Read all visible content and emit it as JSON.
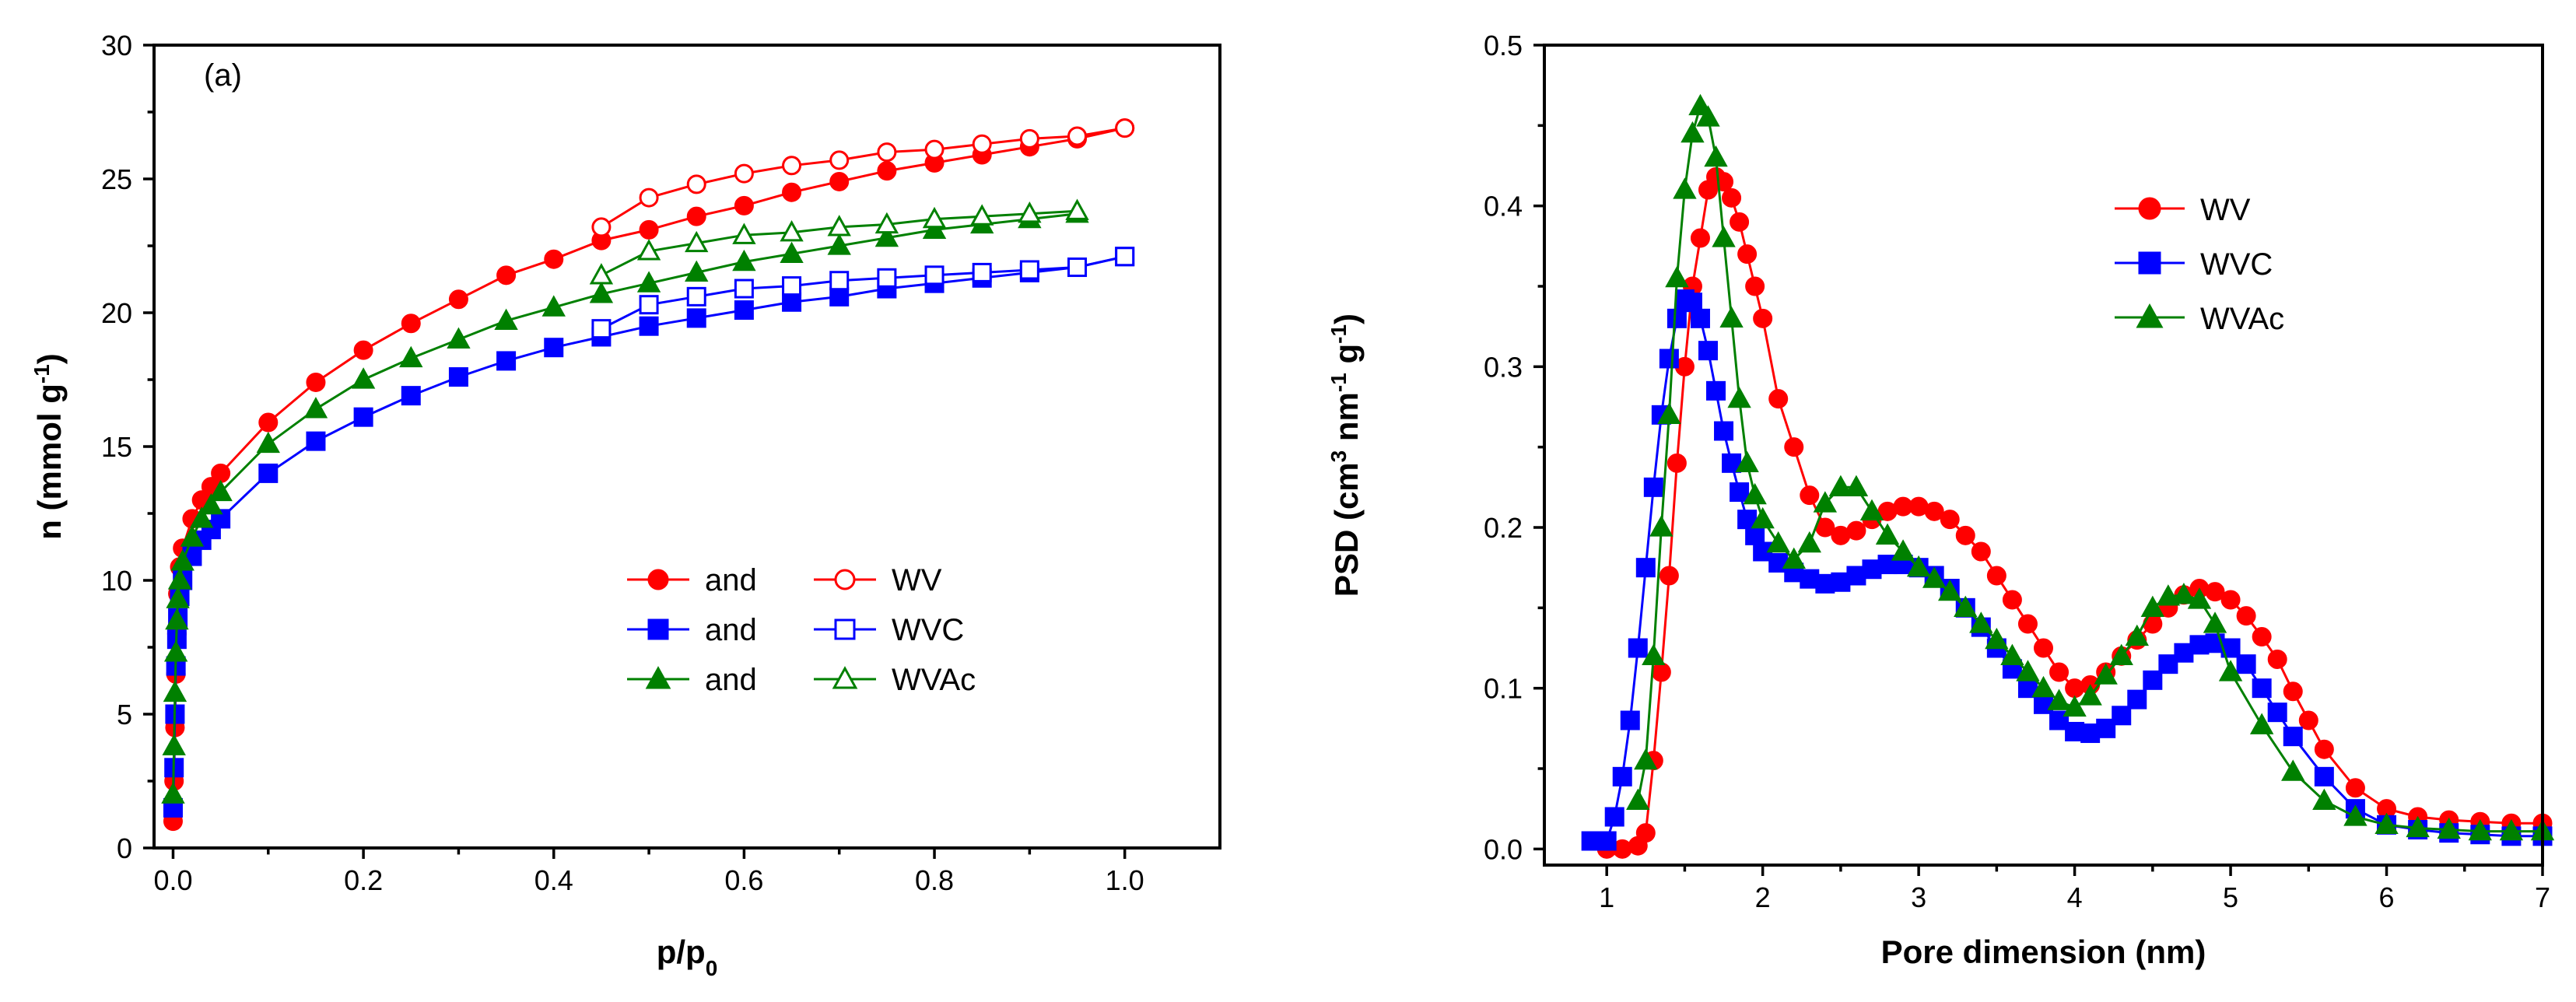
{
  "chart_data": [
    {
      "type": "line",
      "panel_label": "(a)",
      "xlabel": "p/p0",
      "xlabel_main": "p/p",
      "xlabel_sub": "0",
      "ylabel": "n (mmol g-1)",
      "ylabel_main": "n (mmol g",
      "ylabel_sup": "-1",
      "ylabel_close": ")",
      "xlim": [
        -0.02,
        1.1
      ],
      "ylim": [
        0,
        30
      ],
      "xticks": [
        "0.0",
        "0.2",
        "0.4",
        "0.6",
        "0.8",
        "1.0"
      ],
      "xtick_values": [
        0.0,
        0.2,
        0.4,
        0.6,
        0.8,
        1.0
      ],
      "yticks": [
        "0",
        "5",
        "10",
        "15",
        "20",
        "25",
        "30"
      ],
      "ytick_values": [
        0,
        5,
        10,
        15,
        20,
        25,
        30
      ],
      "legend_position": "center-right",
      "series": [
        {
          "name": "WV",
          "color": "#ff0000",
          "marker": "circle",
          "adsorption_label": "and",
          "adsorption": {
            "x": [
              0.0,
              0.001,
              0.002,
              0.003,
              0.004,
              0.005,
              0.007,
              0.01,
              0.02,
              0.03,
              0.04,
              0.05,
              0.1,
              0.15,
              0.2,
              0.25,
              0.3,
              0.35,
              0.4,
              0.45,
              0.5,
              0.55,
              0.6,
              0.65,
              0.7,
              0.75,
              0.8,
              0.85,
              0.9,
              0.95,
              1.0
            ],
            "y": [
              1.0,
              2.5,
              4.5,
              6.5,
              8.0,
              9.5,
              10.5,
              11.2,
              12.3,
              13.0,
              13.5,
              14.0,
              15.9,
              17.4,
              18.6,
              19.6,
              20.5,
              21.4,
              22.0,
              22.7,
              23.1,
              23.6,
              24.0,
              24.5,
              24.9,
              25.3,
              25.6,
              25.9,
              26.2,
              26.5,
              26.9
            ]
          },
          "desorption": {
            "x": [
              0.45,
              0.5,
              0.55,
              0.6,
              0.65,
              0.7,
              0.75,
              0.8,
              0.85,
              0.9,
              0.95,
              1.0
            ],
            "y": [
              23.2,
              24.3,
              24.8,
              25.2,
              25.5,
              25.7,
              26.0,
              26.1,
              26.3,
              26.5,
              26.6,
              26.9
            ]
          }
        },
        {
          "name": "WVC",
          "color": "#0000ff",
          "marker": "square",
          "adsorption_label": "and",
          "adsorption": {
            "x": [
              0.0,
              0.001,
              0.002,
              0.003,
              0.004,
              0.005,
              0.007,
              0.01,
              0.02,
              0.03,
              0.04,
              0.05,
              0.1,
              0.15,
              0.2,
              0.25,
              0.3,
              0.35,
              0.4,
              0.45,
              0.5,
              0.55,
              0.6,
              0.65,
              0.7,
              0.75,
              0.8,
              0.85,
              0.9,
              0.95,
              1.0
            ],
            "y": [
              1.5,
              3.0,
              5.0,
              6.8,
              7.8,
              8.6,
              9.4,
              10.0,
              10.9,
              11.5,
              11.9,
              12.3,
              14.0,
              15.2,
              16.1,
              16.9,
              17.6,
              18.2,
              18.7,
              19.1,
              19.5,
              19.8,
              20.1,
              20.4,
              20.6,
              20.9,
              21.1,
              21.3,
              21.5,
              21.7,
              22.1
            ]
          },
          "desorption": {
            "x": [
              0.45,
              0.5,
              0.55,
              0.6,
              0.65,
              0.7,
              0.75,
              0.8,
              0.85,
              0.9,
              0.95,
              1.0
            ],
            "y": [
              19.4,
              20.3,
              20.6,
              20.9,
              21.0,
              21.2,
              21.3,
              21.4,
              21.5,
              21.6,
              21.7,
              22.1
            ]
          }
        },
        {
          "name": "WVAc",
          "color": "#008000",
          "marker": "triangle",
          "adsorption_label": "and",
          "adsorption": {
            "x": [
              0.0,
              0.001,
              0.002,
              0.003,
              0.004,
              0.005,
              0.007,
              0.01,
              0.02,
              0.03,
              0.04,
              0.05,
              0.1,
              0.15,
              0.2,
              0.25,
              0.3,
              0.35,
              0.4,
              0.45,
              0.5,
              0.55,
              0.6,
              0.65,
              0.7,
              0.75,
              0.8,
              0.85,
              0.9,
              0.95
            ],
            "y": [
              2.0,
              3.8,
              5.8,
              7.3,
              8.5,
              9.3,
              10.0,
              10.7,
              11.6,
              12.3,
              12.8,
              13.3,
              15.1,
              16.4,
              17.5,
              18.3,
              19.0,
              19.7,
              20.2,
              20.7,
              21.1,
              21.5,
              21.9,
              22.2,
              22.5,
              22.8,
              23.1,
              23.3,
              23.5,
              23.7
            ]
          },
          "desorption": {
            "x": [
              0.45,
              0.5,
              0.55,
              0.6,
              0.65,
              0.7,
              0.75,
              0.8,
              0.85,
              0.9,
              0.95
            ],
            "y": [
              21.4,
              22.3,
              22.6,
              22.9,
              23.0,
              23.2,
              23.3,
              23.5,
              23.6,
              23.7,
              23.8
            ]
          }
        }
      ]
    },
    {
      "type": "line",
      "xlabel": "Pore dimension (nm)",
      "ylabel": "PSD (cm3 nm-1 g-1)",
      "ylabel_parts": [
        "PSD (cm",
        "3",
        " nm",
        "-1",
        " g",
        "-1",
        ")"
      ],
      "xlim": [
        0.6,
        7.0
      ],
      "ylim": [
        -0.01,
        0.5
      ],
      "xticks": [
        "1",
        "2",
        "3",
        "4",
        "5",
        "6",
        "7"
      ],
      "xtick_values": [
        1,
        2,
        3,
        4,
        5,
        6,
        7
      ],
      "yticks": [
        "0.0",
        "0.1",
        "0.2",
        "0.3",
        "0.4",
        "0.5"
      ],
      "ytick_values": [
        0.0,
        0.1,
        0.2,
        0.3,
        0.4,
        0.5
      ],
      "legend_position": "upper-right",
      "series": [
        {
          "name": "WV",
          "color": "#ff0000",
          "marker": "circle",
          "x": [
            1.0,
            1.1,
            1.2,
            1.25,
            1.3,
            1.35,
            1.4,
            1.45,
            1.5,
            1.55,
            1.6,
            1.65,
            1.7,
            1.75,
            1.8,
            1.85,
            1.9,
            1.95,
            2.0,
            2.1,
            2.2,
            2.3,
            2.4,
            2.5,
            2.6,
            2.7,
            2.8,
            2.9,
            3.0,
            3.1,
            3.2,
            3.3,
            3.4,
            3.5,
            3.6,
            3.7,
            3.8,
            3.9,
            4.0,
            4.1,
            4.2,
            4.3,
            4.4,
            4.5,
            4.6,
            4.7,
            4.8,
            4.9,
            5.0,
            5.1,
            5.2,
            5.3,
            5.4,
            5.5,
            5.6,
            5.8,
            6.0,
            6.2,
            6.4,
            6.6,
            6.8,
            7.0
          ],
          "y": [
            0.0,
            0.0,
            0.002,
            0.01,
            0.055,
            0.11,
            0.17,
            0.24,
            0.3,
            0.35,
            0.38,
            0.41,
            0.418,
            0.415,
            0.405,
            0.39,
            0.37,
            0.35,
            0.33,
            0.28,
            0.25,
            0.22,
            0.2,
            0.195,
            0.198,
            0.205,
            0.21,
            0.213,
            0.213,
            0.21,
            0.205,
            0.195,
            0.185,
            0.17,
            0.155,
            0.14,
            0.125,
            0.11,
            0.1,
            0.102,
            0.11,
            0.12,
            0.13,
            0.14,
            0.15,
            0.158,
            0.162,
            0.16,
            0.155,
            0.145,
            0.132,
            0.118,
            0.098,
            0.08,
            0.062,
            0.038,
            0.025,
            0.02,
            0.018,
            0.017,
            0.016,
            0.016
          ]
        },
        {
          "name": "WVC",
          "color": "#0000ff",
          "marker": "square",
          "x": [
            0.9,
            1.0,
            1.05,
            1.1,
            1.15,
            1.2,
            1.25,
            1.3,
            1.35,
            1.4,
            1.45,
            1.5,
            1.55,
            1.6,
            1.65,
            1.7,
            1.75,
            1.8,
            1.85,
            1.9,
            1.95,
            2.0,
            2.1,
            2.2,
            2.3,
            2.4,
            2.5,
            2.6,
            2.7,
            2.8,
            2.9,
            3.0,
            3.1,
            3.2,
            3.3,
            3.4,
            3.5,
            3.6,
            3.7,
            3.8,
            3.9,
            4.0,
            4.1,
            4.2,
            4.3,
            4.4,
            4.5,
            4.6,
            4.7,
            4.8,
            4.9,
            5.0,
            5.1,
            5.2,
            5.3,
            5.4,
            5.6,
            5.8,
            6.0,
            6.2,
            6.4,
            6.6,
            6.8,
            7.0
          ],
          "y": [
            0.005,
            0.005,
            0.02,
            0.045,
            0.08,
            0.125,
            0.175,
            0.225,
            0.27,
            0.305,
            0.33,
            0.342,
            0.34,
            0.33,
            0.31,
            0.285,
            0.26,
            0.24,
            0.222,
            0.205,
            0.195,
            0.185,
            0.178,
            0.172,
            0.168,
            0.165,
            0.166,
            0.17,
            0.174,
            0.177,
            0.177,
            0.175,
            0.17,
            0.162,
            0.15,
            0.138,
            0.125,
            0.112,
            0.1,
            0.09,
            0.08,
            0.073,
            0.072,
            0.075,
            0.083,
            0.093,
            0.105,
            0.115,
            0.122,
            0.127,
            0.128,
            0.125,
            0.115,
            0.1,
            0.085,
            0.07,
            0.045,
            0.025,
            0.015,
            0.012,
            0.01,
            0.009,
            0.008,
            0.008
          ]
        },
        {
          "name": "WVAc",
          "color": "#008000",
          "marker": "triangle",
          "x": [
            1.2,
            1.25,
            1.3,
            1.35,
            1.4,
            1.45,
            1.5,
            1.55,
            1.6,
            1.65,
            1.7,
            1.75,
            1.8,
            1.85,
            1.9,
            1.95,
            2.0,
            2.1,
            2.2,
            2.3,
            2.4,
            2.5,
            2.6,
            2.7,
            2.8,
            2.9,
            3.0,
            3.1,
            3.2,
            3.3,
            3.4,
            3.5,
            3.6,
            3.7,
            3.8,
            3.9,
            4.0,
            4.1,
            4.2,
            4.3,
            4.4,
            4.5,
            4.6,
            4.7,
            4.8,
            4.9,
            5.0,
            5.2,
            5.4,
            5.6,
            5.8,
            6.0,
            6.2,
            6.4,
            6.6,
            6.8,
            7.0
          ],
          "y": [
            0.03,
            0.055,
            0.12,
            0.2,
            0.27,
            0.355,
            0.41,
            0.445,
            0.462,
            0.455,
            0.43,
            0.38,
            0.33,
            0.28,
            0.24,
            0.22,
            0.205,
            0.19,
            0.18,
            0.19,
            0.215,
            0.225,
            0.225,
            0.21,
            0.195,
            0.185,
            0.175,
            0.168,
            0.16,
            0.15,
            0.14,
            0.13,
            0.12,
            0.11,
            0.1,
            0.092,
            0.088,
            0.095,
            0.108,
            0.12,
            0.132,
            0.15,
            0.157,
            0.158,
            0.155,
            0.14,
            0.11,
            0.077,
            0.048,
            0.03,
            0.02,
            0.015,
            0.013,
            0.012,
            0.011,
            0.011,
            0.011
          ]
        }
      ]
    }
  ]
}
